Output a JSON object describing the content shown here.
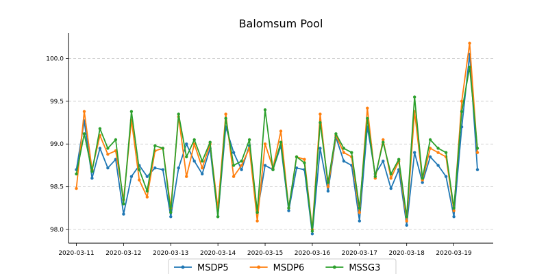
{
  "chart_data": {
    "type": "line",
    "title": "Balomsum Pool",
    "xlabel": "",
    "ylabel": "",
    "xlim": [
      "2020-03-10T20:00",
      "2020-03-19T20:00"
    ],
    "ylim": [
      97.84,
      100.3
    ],
    "y_ticks": [
      98.0,
      98.5,
      99.0,
      99.5,
      100.0
    ],
    "y_tick_labels": [
      "98.0",
      "98.5",
      "99.0",
      "99.5",
      "100.0"
    ],
    "x_ticks": [
      "2020-03-11",
      "2020-03-12",
      "2020-03-13",
      "2020-03-14",
      "2020-03-15",
      "2020-03-16",
      "2020-03-17",
      "2020-03-18",
      "2020-03-19"
    ],
    "x_tick_labels": [
      "2020-03-11",
      "2020-03-12",
      "2020-03-13",
      "2020-03-14",
      "2020-03-15",
      "2020-03-16",
      "2020-03-17",
      "2020-03-18",
      "2020-03-19"
    ],
    "grid": {
      "y": true,
      "x": false,
      "style": "dashed"
    },
    "legend": {
      "position": "bottom-center",
      "columns": 3
    },
    "x": [
      "2020-03-11T00:00",
      "2020-03-11T04:00",
      "2020-03-11T08:00",
      "2020-03-11T12:00",
      "2020-03-11T16:00",
      "2020-03-11T20:00",
      "2020-03-12T00:00",
      "2020-03-12T04:00",
      "2020-03-12T08:00",
      "2020-03-12T12:00",
      "2020-03-12T16:00",
      "2020-03-12T20:00",
      "2020-03-13T00:00",
      "2020-03-13T04:00",
      "2020-03-13T08:00",
      "2020-03-13T12:00",
      "2020-03-13T16:00",
      "2020-03-13T20:00",
      "2020-03-14T00:00",
      "2020-03-14T04:00",
      "2020-03-14T08:00",
      "2020-03-14T12:00",
      "2020-03-14T16:00",
      "2020-03-14T20:00",
      "2020-03-15T00:00",
      "2020-03-15T04:00",
      "2020-03-15T08:00",
      "2020-03-15T12:00",
      "2020-03-15T16:00",
      "2020-03-15T20:00",
      "2020-03-16T00:00",
      "2020-03-16T04:00",
      "2020-03-16T08:00",
      "2020-03-16T12:00",
      "2020-03-16T16:00",
      "2020-03-16T20:00",
      "2020-03-17T00:00",
      "2020-03-17T04:00",
      "2020-03-17T08:00",
      "2020-03-17T12:00",
      "2020-03-17T16:00",
      "2020-03-17T20:00",
      "2020-03-18T00:00",
      "2020-03-18T04:00",
      "2020-03-18T08:00",
      "2020-03-18T12:00",
      "2020-03-18T16:00",
      "2020-03-18T20:00",
      "2020-03-19T00:00",
      "2020-03-19T04:00",
      "2020-03-19T08:00",
      "2020-03-19T12:00"
    ],
    "series": [
      {
        "name": "MSDP5",
        "color": "#1f77b4",
        "values": [
          98.7,
          99.27,
          98.6,
          98.95,
          98.72,
          98.82,
          98.18,
          98.62,
          98.75,
          98.62,
          98.72,
          98.7,
          98.15,
          98.72,
          99.0,
          98.8,
          98.65,
          98.95,
          98.15,
          99.2,
          98.9,
          98.7,
          98.98,
          98.2,
          98.75,
          98.7,
          98.98,
          98.22,
          98.72,
          98.7,
          97.95,
          98.95,
          98.45,
          99.08,
          98.8,
          98.75,
          98.1,
          99.2,
          98.65,
          98.8,
          98.48,
          98.7,
          98.05,
          98.9,
          98.55,
          98.85,
          98.75,
          98.62,
          98.15,
          99.2,
          100.05,
          98.7
        ]
      },
      {
        "name": "MSDP6",
        "color": "#ff7f0e",
        "values": [
          98.48,
          99.38,
          98.7,
          99.1,
          98.88,
          98.92,
          98.35,
          99.28,
          98.58,
          98.38,
          98.92,
          98.95,
          98.25,
          99.32,
          98.62,
          99.0,
          98.72,
          99.0,
          98.25,
          99.35,
          98.62,
          98.75,
          98.95,
          98.1,
          99.0,
          98.72,
          99.15,
          98.25,
          98.85,
          98.82,
          98.0,
          99.35,
          98.5,
          99.1,
          98.9,
          98.85,
          98.2,
          99.42,
          98.6,
          99.05,
          98.6,
          98.8,
          98.1,
          99.38,
          98.58,
          98.95,
          98.9,
          98.85,
          98.22,
          99.5,
          100.18,
          98.9
        ]
      },
      {
        "name": "MSSG3",
        "color": "#2ca02c",
        "values": [
          98.65,
          99.12,
          98.68,
          99.18,
          98.95,
          99.05,
          98.3,
          99.38,
          98.7,
          98.45,
          98.98,
          98.95,
          98.2,
          99.35,
          98.85,
          99.05,
          98.8,
          99.02,
          98.15,
          99.3,
          98.75,
          98.8,
          99.05,
          98.2,
          99.4,
          98.7,
          99.02,
          98.25,
          98.85,
          98.78,
          97.98,
          99.25,
          98.55,
          99.12,
          98.95,
          98.9,
          98.25,
          99.3,
          98.62,
          99.02,
          98.65,
          98.82,
          98.15,
          99.55,
          98.6,
          99.05,
          98.95,
          98.9,
          98.25,
          99.38,
          99.9,
          98.95
        ]
      }
    ]
  }
}
